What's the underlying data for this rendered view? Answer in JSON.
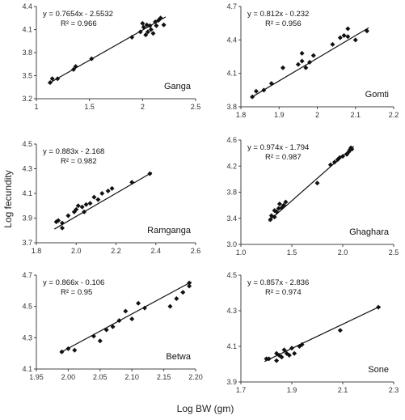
{
  "figure": {
    "ylabel": "Log fecundity",
    "xlabel": "Log BW (gm)"
  },
  "chart_data": [
    {
      "type": "scatter",
      "name": "Ganga",
      "equation": "y = 0.7654x - 2.5532",
      "r2": "R² = 0.966",
      "xlim": [
        1.0,
        2.5
      ],
      "ylim": [
        3.2,
        4.4
      ],
      "xticks": [
        "1",
        "1.5",
        "2",
        "2.5"
      ],
      "yticks": [
        "3.2",
        "3.5",
        "3.8",
        "4.1",
        "4.4"
      ],
      "slope": 0.7654,
      "intercept": -2.5532,
      "points": [
        [
          1.13,
          3.41
        ],
        [
          1.15,
          3.46
        ],
        [
          1.2,
          3.46
        ],
        [
          1.35,
          3.58
        ],
        [
          1.37,
          3.62
        ],
        [
          1.52,
          3.72
        ],
        [
          1.9,
          4.0
        ],
        [
          1.98,
          4.07
        ],
        [
          2.0,
          4.18
        ],
        [
          2.01,
          4.13
        ],
        [
          2.03,
          4.03
        ],
        [
          2.04,
          4.16
        ],
        [
          2.05,
          4.07
        ],
        [
          2.07,
          4.15
        ],
        [
          2.08,
          4.1
        ],
        [
          2.1,
          4.05
        ],
        [
          2.12,
          4.2
        ],
        [
          2.13,
          4.15
        ],
        [
          2.15,
          4.22
        ],
        [
          2.17,
          4.25
        ],
        [
          2.2,
          4.16
        ]
      ]
    },
    {
      "type": "scatter",
      "name": "Gomti",
      "equation": "y = 0.812x - 0.232",
      "r2": "R² = 0.956",
      "xlim": [
        1.8,
        2.2
      ],
      "ylim": [
        3.8,
        4.7
      ],
      "xticks": [
        "1.8",
        "1.9",
        "2",
        "2.1",
        "2.2"
      ],
      "yticks": [
        "3.8",
        "4.1",
        "4.4",
        "4.7"
      ],
      "slope": 0.812,
      "intercept": -0.232,
      "points": [
        [
          1.83,
          3.89
        ],
        [
          1.84,
          3.94
        ],
        [
          1.86,
          3.95
        ],
        [
          1.88,
          4.01
        ],
        [
          1.91,
          4.15
        ],
        [
          1.95,
          4.18
        ],
        [
          1.96,
          4.28
        ],
        [
          1.96,
          4.21
        ],
        [
          1.97,
          4.15
        ],
        [
          1.98,
          4.2
        ],
        [
          1.99,
          4.26
        ],
        [
          2.04,
          4.36
        ],
        [
          2.06,
          4.42
        ],
        [
          2.07,
          4.44
        ],
        [
          2.08,
          4.43
        ],
        [
          2.08,
          4.5
        ],
        [
          2.1,
          4.4
        ],
        [
          2.13,
          4.48
        ]
      ]
    },
    {
      "type": "scatter",
      "name": "Ramganga",
      "equation": "y = 0.883x - 2.168",
      "r2": "R² = 0.982",
      "xlim": [
        1.8,
        2.6
      ],
      "ylim": [
        3.7,
        4.5
      ],
      "xticks": [
        "1.8",
        "2.0",
        "2.2",
        "2.4",
        "2.6"
      ],
      "yticks": [
        "3.7",
        "3.9",
        "4.1",
        "4.3",
        "4.5"
      ],
      "slope": 0.883,
      "intercept": -2.168,
      "points": [
        [
          1.9,
          3.87
        ],
        [
          1.91,
          3.88
        ],
        [
          1.93,
          3.82
        ],
        [
          1.93,
          3.86
        ],
        [
          1.96,
          3.92
        ],
        [
          1.99,
          3.95
        ],
        [
          2.0,
          3.97
        ],
        [
          2.01,
          4.0
        ],
        [
          2.03,
          3.99
        ],
        [
          2.04,
          3.95
        ],
        [
          2.05,
          4.01
        ],
        [
          2.07,
          4.02
        ],
        [
          2.09,
          4.07
        ],
        [
          2.11,
          4.05
        ],
        [
          2.13,
          4.1
        ],
        [
          2.16,
          4.12
        ],
        [
          2.18,
          4.14
        ],
        [
          2.28,
          4.19
        ],
        [
          2.37,
          4.26
        ]
      ]
    },
    {
      "type": "scatter",
      "name": "Ghaghara",
      "equation": "y = 0.974x - 1.794",
      "r2": "R² = 0.987",
      "xlim": [
        1.0,
        2.5
      ],
      "ylim": [
        3.0,
        4.6
      ],
      "xticks": [
        "1.0",
        "1.5",
        "2.0",
        "2.5"
      ],
      "yticks": [
        "3.0",
        "3.4",
        "3.8",
        "4.2",
        "4.6"
      ],
      "slope": 0.974,
      "intercept": -1.794,
      "points": [
        [
          1.29,
          3.38
        ],
        [
          1.3,
          3.44
        ],
        [
          1.33,
          3.42
        ],
        [
          1.33,
          3.52
        ],
        [
          1.35,
          3.5
        ],
        [
          1.37,
          3.55
        ],
        [
          1.38,
          3.62
        ],
        [
          1.4,
          3.56
        ],
        [
          1.42,
          3.6
        ],
        [
          1.44,
          3.65
        ],
        [
          1.75,
          3.94
        ],
        [
          1.88,
          4.22
        ],
        [
          1.92,
          4.26
        ],
        [
          1.95,
          4.3
        ],
        [
          1.97,
          4.33
        ],
        [
          2.0,
          4.35
        ],
        [
          2.04,
          4.38
        ],
        [
          2.06,
          4.42
        ],
        [
          2.07,
          4.45
        ],
        [
          2.08,
          4.48
        ],
        [
          2.09,
          4.46
        ]
      ]
    },
    {
      "type": "scatter",
      "name": "Betwa",
      "equation": "y = 0.866x - 0.106",
      "r2": "R² = 0.95",
      "xlim": [
        1.95,
        2.2
      ],
      "ylim": [
        4.1,
        4.7
      ],
      "xticks": [
        "1.95",
        "2.00",
        "2.05",
        "2.10",
        "2.15",
        "2.20"
      ],
      "yticks": [
        "4.1",
        "4.3",
        "4.5",
        "4.7"
      ],
      "slope": 0.866,
      "intercept": -0.106,
      "points": [
        [
          1.99,
          4.21
        ],
        [
          2.0,
          4.23
        ],
        [
          2.01,
          4.22
        ],
        [
          2.04,
          4.31
        ],
        [
          2.05,
          4.28
        ],
        [
          2.06,
          4.35
        ],
        [
          2.07,
          4.37
        ],
        [
          2.08,
          4.41
        ],
        [
          2.09,
          4.47
        ],
        [
          2.1,
          4.42
        ],
        [
          2.11,
          4.52
        ],
        [
          2.12,
          4.49
        ],
        [
          2.16,
          4.5
        ],
        [
          2.17,
          4.55
        ],
        [
          2.18,
          4.59
        ],
        [
          2.19,
          4.63
        ],
        [
          2.19,
          4.65
        ]
      ]
    },
    {
      "type": "scatter",
      "name": "Sone",
      "equation": "y = 0.857x - 2.836",
      "r2": "R² = 0.974",
      "xlim": [
        1.7,
        2.3
      ],
      "ylim": [
        3.9,
        4.5
      ],
      "xticks": [
        "1.7",
        "1.9",
        "2.1",
        "2.3"
      ],
      "yticks": [
        "3.9",
        "4.1",
        "4.3",
        "4.5"
      ],
      "slope": 0.857,
      "intercept": -2.836,
      "points": [
        [
          1.8,
          4.03
        ],
        [
          1.81,
          4.03
        ],
        [
          1.84,
          4.06
        ],
        [
          1.84,
          4.02
        ],
        [
          1.85,
          4.05
        ],
        [
          1.86,
          4.04
        ],
        [
          1.87,
          4.08
        ],
        [
          1.88,
          4.06
        ],
        [
          1.89,
          4.05
        ],
        [
          1.9,
          4.09
        ],
        [
          1.91,
          4.06
        ],
        [
          1.93,
          4.1
        ],
        [
          1.94,
          4.11
        ],
        [
          2.09,
          4.19
        ],
        [
          2.24,
          4.32
        ]
      ]
    }
  ]
}
